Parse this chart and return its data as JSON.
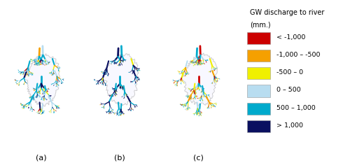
{
  "legend_title_line1": "GW discharge to river",
  "legend_title_line2": "(mm.)",
  "legend_entries": [
    {
      "label": "< -1,000",
      "color": "#cc0000"
    },
    {
      "label": "-1,000 – -500",
      "color": "#f5a000"
    },
    {
      "label": "-500 – 0",
      "color": "#f0f000"
    },
    {
      "label": "0 – 500",
      "color": "#b8ddf0"
    },
    {
      "label": "500 – 1,000",
      "color": "#00aacc"
    },
    {
      "label": "> 1,000",
      "color": "#0a1060"
    }
  ],
  "sublabels": [
    "(a)",
    "(b)",
    "(c)"
  ],
  "background_color": "#ffffff",
  "basin_fill": "#f8f8ff",
  "basin_border": "#c8c8c8",
  "fig_width": 5.0,
  "fig_height": 2.33,
  "dpi": 100
}
